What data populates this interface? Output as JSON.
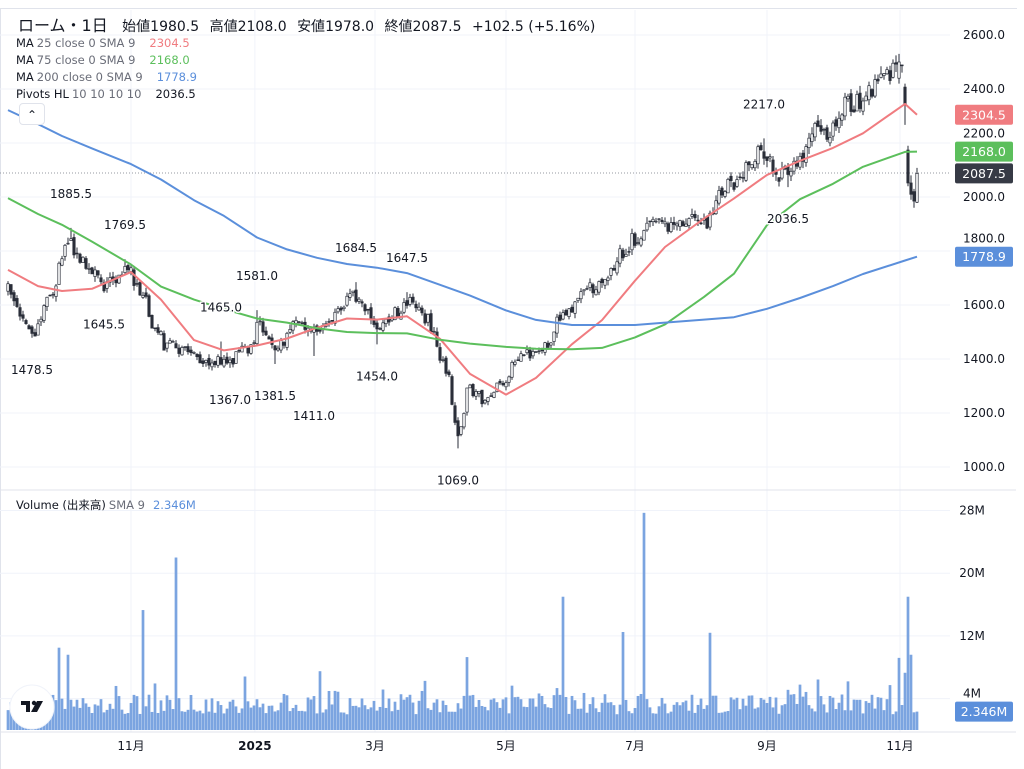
{
  "header": {
    "title": "ローム・1日",
    "ohlc": [
      {
        "label": "始値",
        "value": "1980.5"
      },
      {
        "label": "高値",
        "value": "2108.0"
      },
      {
        "label": "安値",
        "value": "1978.0"
      },
      {
        "label": "終値",
        "value": "2087.5"
      }
    ],
    "change": "+102.5 (+5.16%)"
  },
  "legend": [
    {
      "name": "MA",
      "params": "25 close 0 SMA 9",
      "value": "2304.5",
      "color": "#f07c80"
    },
    {
      "name": "MA",
      "params": "75 close 0 SMA 9",
      "value": "2168.0",
      "color": "#5cbf5c"
    },
    {
      "name": "MA",
      "params": "200 close 0 SMA 9",
      "value": "1778.9",
      "color": "#5b8fdb"
    },
    {
      "name": "Pivots HL",
      "params": "10 10 10 10",
      "value": "2036.5",
      "color": "#131722"
    }
  ],
  "collapse_icon": "chevron-up-icon",
  "volume_legend": {
    "name": "Volume (出来高)",
    "params": "SMA 9",
    "value": "2.346M"
  },
  "price_axis": {
    "ticks": [
      "1000.0",
      "1200.0",
      "1400.0",
      "1600.0",
      "1800.0",
      "2000.0",
      "2200.0",
      "2400.0",
      "2600.0"
    ]
  },
  "volume_axis": {
    "ticks": [
      "4M",
      "12M",
      "20M",
      "28M"
    ]
  },
  "price_tags": [
    {
      "value": "2304.5",
      "color": "#f07c80"
    },
    {
      "value": "2168.0",
      "color": "#5cbf5c"
    },
    {
      "value": "2087.5",
      "color": "#363a45"
    },
    {
      "value": "1778.9",
      "color": "#5b8fdb"
    }
  ],
  "volume_tag": {
    "value": "2.346M",
    "color": "#5b8fdb"
  },
  "x_ticks": [
    {
      "date": "2024-11-01",
      "label": "11月"
    },
    {
      "date": "2025-01-01",
      "label": "2025"
    },
    {
      "date": "2025-03-01",
      "label": "3月"
    },
    {
      "date": "2025-05-01",
      "label": "5月"
    },
    {
      "date": "2025-07-01",
      "label": "7月"
    },
    {
      "date": "2025-09-01",
      "label": "9月"
    },
    {
      "date": "2025-11-01",
      "label": "11月"
    }
  ],
  "chart_data": {
    "type": "candlestick",
    "ylim": [
      925,
      2690
    ],
    "volume_ylim": [
      0,
      30
    ],
    "volume_unit": "M",
    "grid": true,
    "up_color": "#ffffff",
    "down_color": "#2a2e39",
    "volume_color": "#7ba4e0",
    "last_price": 2087.5,
    "closes": [
      [
        "2024-09-05",
        1655
      ],
      [
        "2024-09-12",
        1544
      ],
      [
        "2024-09-17",
        1489
      ],
      [
        "2024-09-24",
        1618
      ],
      [
        "2024-09-30",
        1730
      ],
      [
        "2024-10-03",
        1840
      ],
      [
        "2024-10-08",
        1767
      ],
      [
        "2024-10-15",
        1711
      ],
      [
        "2024-10-21",
        1674
      ],
      [
        "2024-10-30",
        1737
      ],
      [
        "2024-11-06",
        1655
      ],
      [
        "2024-11-11",
        1544
      ],
      [
        "2024-11-18",
        1452
      ],
      [
        "2024-11-27",
        1433
      ],
      [
        "2024-12-06",
        1396
      ],
      [
        "2024-12-17",
        1389
      ],
      [
        "2024-12-26",
        1441
      ],
      [
        "2025-01-06",
        1552
      ],
      [
        "2025-01-09",
        1470
      ],
      [
        "2025-01-14",
        1433
      ],
      [
        "2025-01-23",
        1544
      ],
      [
        "2025-01-31",
        1507
      ],
      [
        "2025-02-10",
        1552
      ],
      [
        "2025-02-20",
        1637
      ],
      [
        "2025-03-03",
        1507
      ],
      [
        "2025-03-10",
        1563
      ],
      [
        "2025-03-18",
        1618
      ],
      [
        "2025-03-26",
        1544
      ],
      [
        "2025-04-01",
        1415
      ],
      [
        "2025-04-07",
        1248
      ],
      [
        "2025-04-09",
        1111
      ],
      [
        "2025-04-14",
        1304
      ],
      [
        "2025-04-21",
        1230
      ],
      [
        "2025-04-29",
        1304
      ],
      [
        "2025-05-09",
        1415
      ],
      [
        "2025-05-19",
        1433
      ],
      [
        "2025-05-26",
        1544
      ],
      [
        "2025-06-02",
        1581
      ],
      [
        "2025-06-06",
        1655
      ],
      [
        "2025-06-16",
        1674
      ],
      [
        "2025-06-23",
        1785
      ],
      [
        "2025-06-30",
        1840
      ],
      [
        "2025-07-10",
        1896
      ],
      [
        "2025-07-18",
        1896
      ],
      [
        "2025-07-28",
        1915
      ],
      [
        "2025-08-04",
        1896
      ],
      [
        "2025-08-08",
        2007
      ],
      [
        "2025-08-18",
        2081
      ],
      [
        "2025-08-29",
        2174
      ],
      [
        "2025-09-05",
        2081
      ],
      [
        "2025-09-10",
        2081
      ],
      [
        "2025-09-17",
        2156
      ],
      [
        "2025-09-24",
        2267
      ],
      [
        "2025-09-30",
        2230
      ],
      [
        "2025-10-07",
        2341
      ],
      [
        "2025-10-14",
        2359
      ],
      [
        "2025-10-21",
        2415
      ],
      [
        "2025-10-30",
        2470
      ]
    ],
    "recent_candles": [
      {
        "date": "2025-10-31",
        "open": 2440,
        "high": 2530,
        "low": 2420,
        "close": 2500
      },
      {
        "date": "2025-11-04",
        "open": 2407,
        "high": 2420,
        "low": 2267,
        "close": 2341
      },
      {
        "date": "2025-11-05",
        "open": 2174,
        "high": 2190,
        "low": 2040,
        "close": 2052
      },
      {
        "date": "2025-11-06",
        "open": 2052,
        "high": 2080,
        "low": 1990,
        "close": 2010
      },
      {
        "date": "2025-11-07",
        "open": 2020,
        "high": 2030,
        "low": 1960,
        "close": 1985
      },
      {
        "date": "2025-11-10",
        "open": 1980.5,
        "high": 2108.0,
        "low": 1978.0,
        "close": 2087.5
      }
    ],
    "pivots": [
      {
        "date": "2024-09-17",
        "price": 1478.5,
        "type": "low",
        "label": "1478.5"
      },
      {
        "date": "2024-10-04",
        "price": 1885.5,
        "type": "high",
        "label": "1885.5"
      },
      {
        "date": "2024-10-21",
        "price": 1645.5,
        "type": "low",
        "label": "1645.5"
      },
      {
        "date": "2024-10-30",
        "price": 1769.5,
        "type": "high",
        "label": "1769.5"
      },
      {
        "date": "2024-12-13",
        "price": 1465.0,
        "type": "high",
        "label": "1465.0"
      },
      {
        "date": "2024-12-18",
        "price": 1367.0,
        "type": "low",
        "label": "1367.0"
      },
      {
        "date": "2025-01-06",
        "price": 1581.0,
        "type": "high",
        "label": "1581.0"
      },
      {
        "date": "2025-01-14",
        "price": 1381.5,
        "type": "low",
        "label": "1381.5"
      },
      {
        "date": "2025-01-31",
        "price": 1411.0,
        "type": "low",
        "label": "1411.0"
      },
      {
        "date": "2025-02-20",
        "price": 1684.5,
        "type": "high",
        "label": "1684.5"
      },
      {
        "date": "2025-03-03",
        "price": 1454.0,
        "type": "low",
        "label": "1454.0"
      },
      {
        "date": "2025-03-17",
        "price": 1647.5,
        "type": "high",
        "label": "1647.5"
      },
      {
        "date": "2025-04-09",
        "price": 1069.0,
        "type": "low",
        "label": "1069.0"
      },
      {
        "date": "2025-08-29",
        "price": 2217.0,
        "type": "high",
        "label": "2217.0"
      },
      {
        "date": "2025-09-10",
        "price": 2036.5,
        "type": "low",
        "label": "2036.5"
      }
    ],
    "moving_averages": [
      {
        "name": "MA 25",
        "color": "#f07c80",
        "points": [
          [
            "2024-09-05",
            1730
          ],
          [
            "2024-09-19",
            1670
          ],
          [
            "2024-10-01",
            1652
          ],
          [
            "2024-10-15",
            1660
          ],
          [
            "2024-11-01",
            1722
          ],
          [
            "2024-11-15",
            1620
          ],
          [
            "2024-12-02",
            1470
          ],
          [
            "2024-12-16",
            1432
          ],
          [
            "2025-01-06",
            1450
          ],
          [
            "2025-01-20",
            1476
          ],
          [
            "2025-02-03",
            1516
          ],
          [
            "2025-02-17",
            1550
          ],
          [
            "2025-03-03",
            1546
          ],
          [
            "2025-03-17",
            1558
          ],
          [
            "2025-04-01",
            1475
          ],
          [
            "2025-04-15",
            1345
          ],
          [
            "2025-05-01",
            1268
          ],
          [
            "2025-05-15",
            1330
          ],
          [
            "2025-06-02",
            1455
          ],
          [
            "2025-06-16",
            1544
          ],
          [
            "2025-07-01",
            1690
          ],
          [
            "2025-07-15",
            1815
          ],
          [
            "2025-08-01",
            1920
          ],
          [
            "2025-08-15",
            1995
          ],
          [
            "2025-09-01",
            2082
          ],
          [
            "2025-09-16",
            2134
          ],
          [
            "2025-10-01",
            2182
          ],
          [
            "2025-10-15",
            2236
          ],
          [
            "2025-11-04",
            2345
          ],
          [
            "2025-11-10",
            2304.5
          ]
        ]
      },
      {
        "name": "MA 75",
        "color": "#5cbf5c",
        "points": [
          [
            "2024-09-05",
            1996
          ],
          [
            "2024-09-19",
            1937
          ],
          [
            "2024-10-01",
            1897
          ],
          [
            "2024-10-15",
            1835
          ],
          [
            "2024-11-01",
            1750
          ],
          [
            "2024-11-15",
            1668
          ],
          [
            "2024-12-02",
            1620
          ],
          [
            "2024-12-16",
            1585
          ],
          [
            "2025-01-06",
            1550
          ],
          [
            "2025-01-20",
            1535
          ],
          [
            "2025-02-03",
            1514
          ],
          [
            "2025-02-17",
            1500
          ],
          [
            "2025-03-03",
            1496
          ],
          [
            "2025-03-17",
            1495
          ],
          [
            "2025-04-01",
            1471
          ],
          [
            "2025-04-15",
            1457
          ],
          [
            "2025-05-01",
            1445
          ],
          [
            "2025-05-15",
            1438
          ],
          [
            "2025-06-02",
            1436
          ],
          [
            "2025-06-16",
            1441
          ],
          [
            "2025-07-01",
            1480
          ],
          [
            "2025-07-15",
            1528
          ],
          [
            "2025-08-01",
            1630
          ],
          [
            "2025-08-15",
            1716
          ],
          [
            "2025-09-01",
            1896
          ],
          [
            "2025-09-16",
            1992
          ],
          [
            "2025-10-01",
            2049
          ],
          [
            "2025-10-15",
            2112
          ],
          [
            "2025-11-04",
            2167
          ],
          [
            "2025-11-10",
            2168.0
          ]
        ]
      },
      {
        "name": "MA 200",
        "color": "#5b8fdb",
        "points": [
          [
            "2024-09-05",
            2322
          ],
          [
            "2024-09-19",
            2270
          ],
          [
            "2024-10-01",
            2226
          ],
          [
            "2024-10-15",
            2180
          ],
          [
            "2024-11-01",
            2122
          ],
          [
            "2024-11-15",
            2065
          ],
          [
            "2024-12-02",
            1988
          ],
          [
            "2024-12-16",
            1930
          ],
          [
            "2025-01-06",
            1850
          ],
          [
            "2025-01-20",
            1806
          ],
          [
            "2025-02-03",
            1775
          ],
          [
            "2025-02-17",
            1752
          ],
          [
            "2025-03-03",
            1738
          ],
          [
            "2025-03-17",
            1718
          ],
          [
            "2025-04-01",
            1675
          ],
          [
            "2025-04-15",
            1635
          ],
          [
            "2025-05-01",
            1580
          ],
          [
            "2025-05-15",
            1545
          ],
          [
            "2025-06-02",
            1526
          ],
          [
            "2025-06-16",
            1526
          ],
          [
            "2025-07-01",
            1526
          ],
          [
            "2025-07-15",
            1535
          ],
          [
            "2025-08-01",
            1546
          ],
          [
            "2025-08-15",
            1555
          ],
          [
            "2025-09-01",
            1586
          ],
          [
            "2025-09-16",
            1626
          ],
          [
            "2025-10-01",
            1670
          ],
          [
            "2025-10-15",
            1715
          ],
          [
            "2025-11-04",
            1765
          ],
          [
            "2025-11-10",
            1778.9
          ]
        ]
      }
    ],
    "volume_spikes_millions": [
      [
        "2024-09-30",
        10.5
      ],
      [
        "2024-10-03",
        9.6
      ],
      [
        "2024-11-07",
        15.3
      ],
      [
        "2024-11-22",
        22.0
      ],
      [
        "2025-02-04",
        7.5
      ],
      [
        "2025-04-14",
        9.3
      ],
      [
        "2025-05-28",
        17.0
      ],
      [
        "2025-06-25",
        12.5
      ],
      [
        "2025-07-04",
        27.7
      ],
      [
        "2025-08-05",
        12.4
      ],
      [
        "2025-10-31",
        9.2
      ],
      [
        "2025-11-04",
        7.3
      ],
      [
        "2025-11-05",
        17.0
      ],
      [
        "2025-11-06",
        9.6
      ],
      [
        "2025-11-10",
        2.346
      ]
    ]
  }
}
